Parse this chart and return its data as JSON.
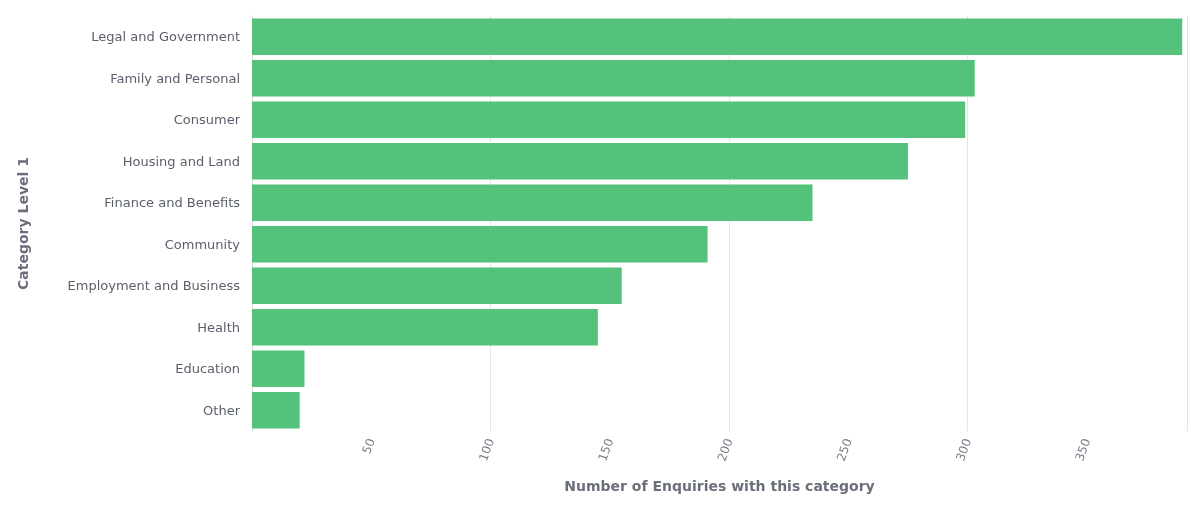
{
  "chart_data": {
    "type": "bar",
    "orientation": "horizontal",
    "xlabel": "Number of Enquiries with this category",
    "ylabel": "Category Level 1",
    "categories": [
      "Legal and Government",
      "Family and Personal",
      "Consumer",
      "Housing and Land",
      "Finance and Benefits",
      "Community",
      "Employment and Business",
      "Health",
      "Education",
      "Other"
    ],
    "values": [
      390,
      303,
      299,
      275,
      235,
      191,
      155,
      145,
      22,
      20
    ],
    "color": "#54c27a",
    "xlim": [
      0,
      392
    ],
    "xticks": [
      50,
      100,
      150,
      200,
      250,
      300,
      350
    ],
    "grid": "x"
  }
}
